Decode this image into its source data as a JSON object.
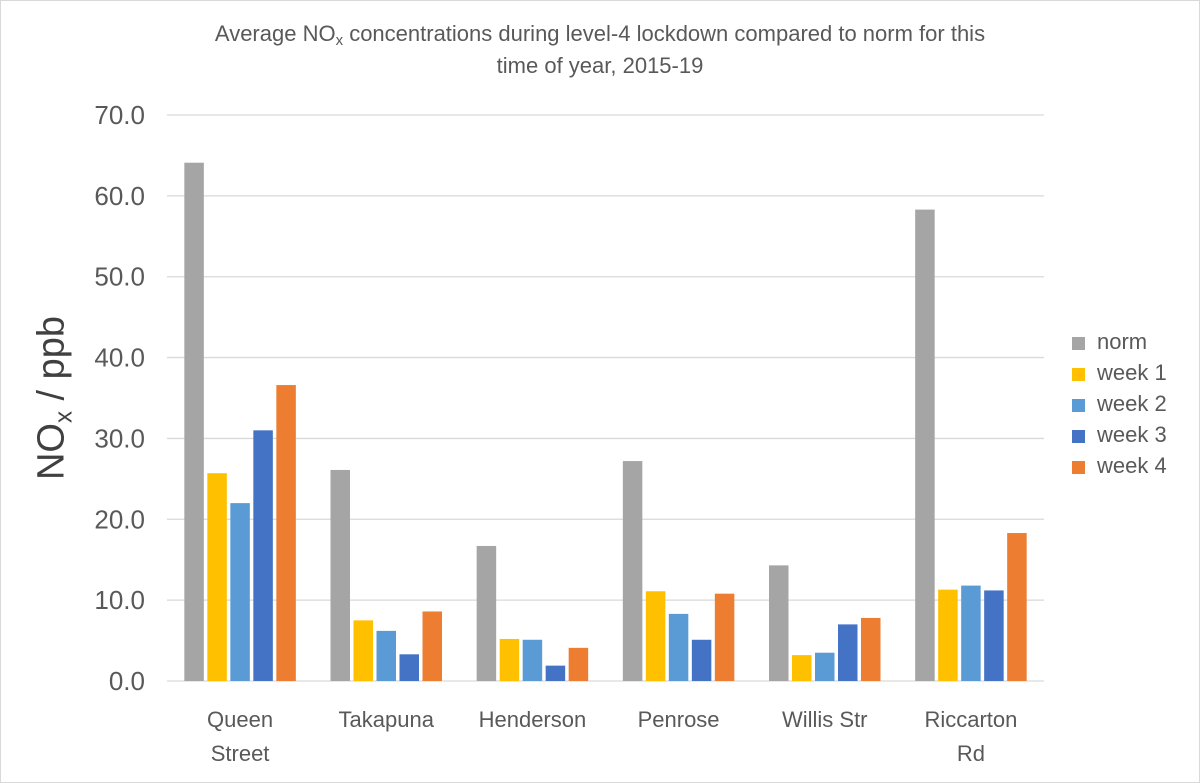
{
  "chart_data": {
    "type": "bar",
    "title_parts": [
      "Average NO",
      "x",
      " concentrations during level-4 lockdown compared to norm for this",
      "time of year, 2015-19"
    ],
    "ylabel_parts": [
      "NO",
      "x",
      " / ppb"
    ],
    "ylim": [
      0,
      70
    ],
    "yticks": [
      0,
      10,
      20,
      30,
      40,
      50,
      60,
      70
    ],
    "ytick_labels": [
      "0.0",
      "10.0",
      "20.0",
      "30.0",
      "40.0",
      "50.0",
      "60.0",
      "70.0"
    ],
    "grid": true,
    "legend_position": "right",
    "categories": [
      [
        "Queen",
        "Street"
      ],
      [
        "Takapuna"
      ],
      [
        "Henderson"
      ],
      [
        "Penrose"
      ],
      [
        "Willis Str"
      ],
      [
        "Riccarton",
        "Rd"
      ]
    ],
    "series": [
      {
        "name": "norm",
        "color": "#a5a5a5",
        "values": [
          64.1,
          26.1,
          16.7,
          27.2,
          14.3,
          58.3
        ]
      },
      {
        "name": "week 1",
        "color": "#ffc000",
        "values": [
          25.7,
          7.5,
          5.2,
          11.1,
          3.2,
          11.3
        ]
      },
      {
        "name": "week 2",
        "color": "#5b9bd5",
        "values": [
          22.0,
          6.2,
          5.1,
          8.3,
          3.5,
          11.8
        ]
      },
      {
        "name": "week 3",
        "color": "#4472c4",
        "values": [
          31.0,
          3.3,
          1.9,
          5.1,
          7.0,
          11.2
        ]
      },
      {
        "name": "week 4",
        "color": "#ed7d31",
        "values": [
          36.6,
          8.6,
          4.1,
          10.8,
          7.8,
          18.3
        ]
      }
    ],
    "gridline_color": "#d9d9d9",
    "text_color": "#595959"
  }
}
